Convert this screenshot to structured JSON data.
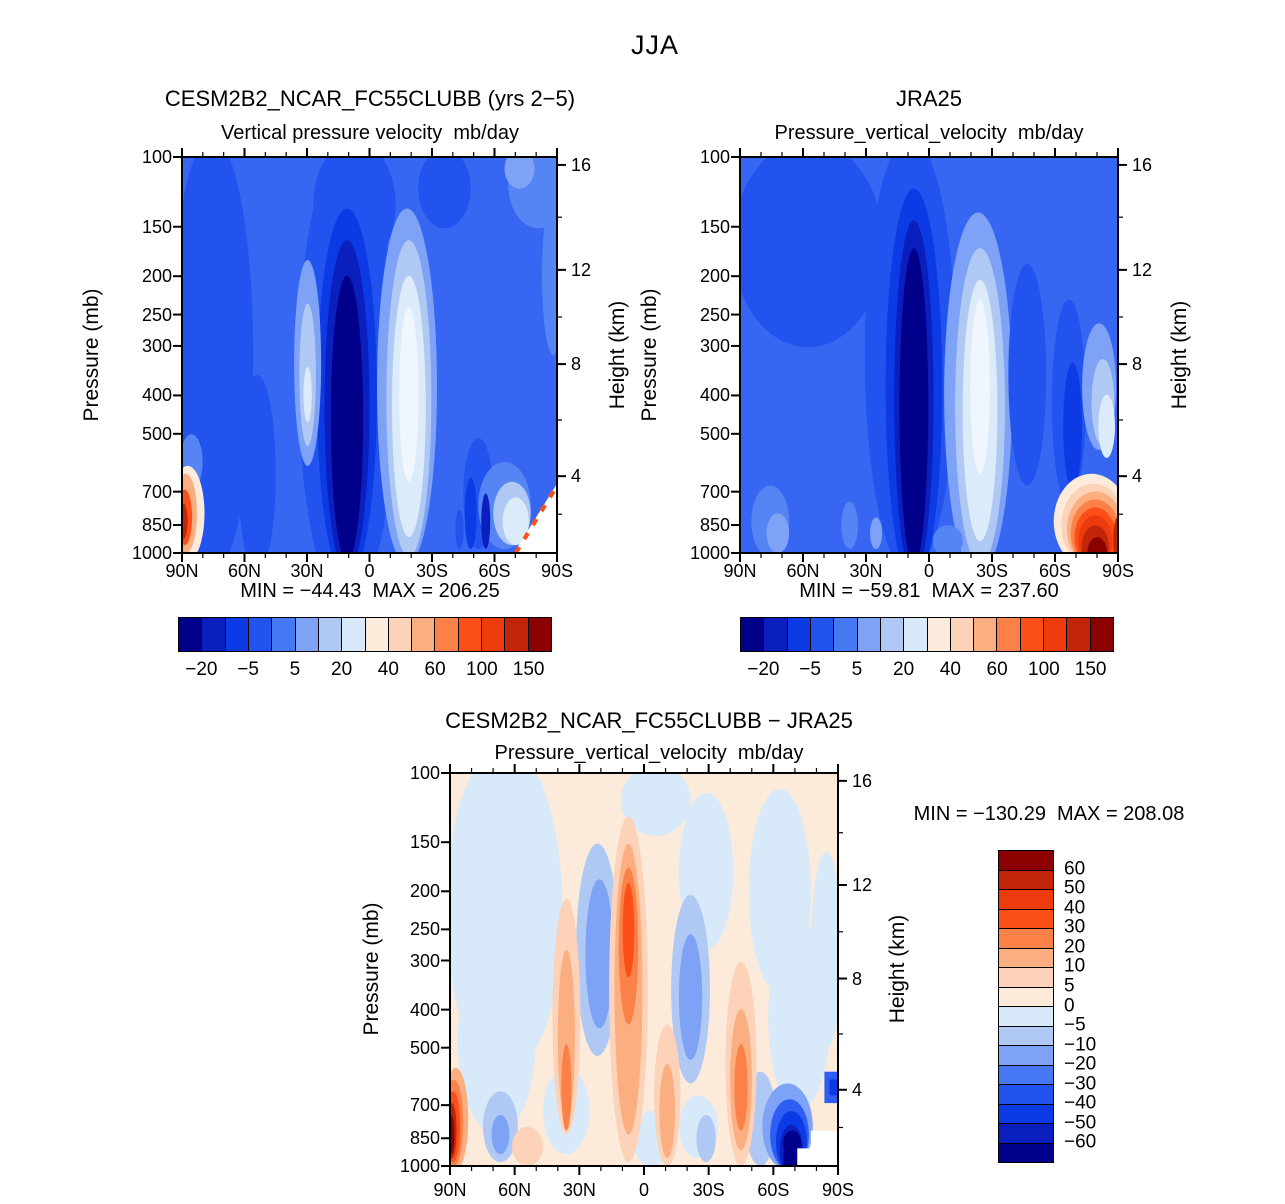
{
  "figure_title": "JJA",
  "panels": [
    {
      "key": "model",
      "title": "CESM2B2_NCAR_FC55CLUBB (yrs 2−5)",
      "subtitle": "Vertical pressure velocity  mb/day",
      "minmax": "MIN = −44.43  MAX = 206.25"
    },
    {
      "key": "obs",
      "title": "JRA25",
      "subtitle": "Pressure_vertical_velocity  mb/day",
      "minmax": "MIN = −59.81  MAX = 237.60"
    },
    {
      "key": "diff",
      "title": "CESM2B2_NCAR_FC55CLUBB − JRA25",
      "subtitle": "Pressure_vertical_velocity  mb/day",
      "minmax": "MIN = −130.29  MAX = 208.08"
    }
  ],
  "axes": {
    "pressure_label": "Pressure (mb)",
    "pressure_ticks": [
      "100",
      "150",
      "200",
      "250",
      "300",
      "400",
      "500",
      "700",
      "850",
      "1000"
    ],
    "height_label": "Height (km)",
    "height_ticks": [
      "16",
      "12",
      "8",
      "4"
    ],
    "lat_ticks": [
      "90N",
      "60N",
      "30N",
      "0",
      "30S",
      "60S",
      "90S"
    ]
  },
  "colorbar": {
    "palette": [
      "#00008B",
      "#0B1EBE",
      "#0C3BE5",
      "#2253EF",
      "#4678F3",
      "#7EA2F5",
      "#B0C9F4",
      "#D8E9FA",
      "#FCEBDA",
      "#FCD2B8",
      "#FBAE80",
      "#FB8148",
      "#FB4F17",
      "#ED3B0D",
      "#C22508",
      "#8B0000"
    ],
    "h_labels": [
      "−20",
      "−5",
      "5",
      "20",
      "40",
      "60",
      "100",
      "150"
    ],
    "v_labels": [
      "60",
      "50",
      "40",
      "30",
      "20",
      "10",
      "5",
      "0",
      "−5",
      "−10",
      "−20",
      "−30",
      "−40",
      "−50",
      "−60"
    ]
  },
  "chart_data": {
    "type": "filled-contour",
    "season": "JJA",
    "variable": "Vertical pressure velocity (omega)",
    "units": "mb/day",
    "x_axis": {
      "label": "latitude",
      "ticks": [
        "90N",
        "60N",
        "30N",
        "0",
        "30S",
        "60S",
        "90S"
      ],
      "range": [
        "90N",
        "90S"
      ]
    },
    "y_axis_left": {
      "label": "Pressure (mb)",
      "scale": "log",
      "ticks": [
        100,
        150,
        200,
        250,
        300,
        400,
        500,
        700,
        850,
        1000
      ],
      "range": [
        100,
        1000
      ]
    },
    "y_axis_right": {
      "label": "Height (km)",
      "ticks": [
        16,
        12,
        8,
        4
      ]
    },
    "panels": [
      {
        "name": "CESM2B2_NCAR_FC55CLUBB (yrs 2−5)",
        "field_title": "Vertical pressure velocity",
        "units": "mb/day",
        "min": -44.43,
        "max": 206.25,
        "colorbar_labeled_levels": [
          -20,
          -5,
          5,
          20,
          40,
          60,
          100,
          150
        ],
        "colorbar_orientation": "horizontal"
      },
      {
        "name": "JRA25",
        "field_title": "Pressure_vertical_velocity",
        "units": "mb/day",
        "min": -59.81,
        "max": 237.6,
        "colorbar_labeled_levels": [
          -20,
          -5,
          5,
          20,
          40,
          60,
          100,
          150
        ],
        "colorbar_orientation": "horizontal"
      },
      {
        "name": "CESM2B2_NCAR_FC55CLUBB − JRA25",
        "field_title": "Pressure_vertical_velocity",
        "units": "mb/day",
        "min": -130.29,
        "max": 208.08,
        "colorbar_labeled_levels": [
          60,
          50,
          40,
          30,
          20,
          10,
          5,
          0,
          -5,
          -10,
          -20,
          -30,
          -40,
          -50,
          -60
        ],
        "colorbar_orientation": "vertical"
      }
    ],
    "palette_blue_to_red": [
      "#00008B",
      "#0B1EBE",
      "#0C3BE5",
      "#2253EF",
      "#4678F3",
      "#7EA2F5",
      "#B0C9F4",
      "#D8E9FA",
      "#FCEBDA",
      "#FCD2B8",
      "#FBAE80",
      "#FB8148",
      "#FB4F17",
      "#ED3B0D",
      "#C22508",
      "#8B0000"
    ],
    "notable_features": "Dark blue (strong upward motion) column near the equator in both model and reanalysis; pale subsidence band near 10-25S; warm (positive omega) patch near Antarctic coast at low levels; difference panel mostly within ±10 mb/day with alternating vertical bands."
  }
}
